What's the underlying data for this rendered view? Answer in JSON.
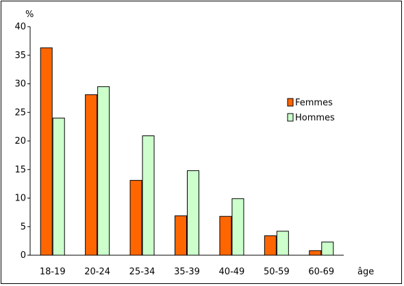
{
  "chart_data": {
    "type": "bar",
    "title": "",
    "ylabel": "%",
    "xlabel": "âge",
    "ylim": [
      0,
      40
    ],
    "yticks": [
      0,
      5,
      10,
      15,
      20,
      25,
      30,
      35,
      40
    ],
    "categories": [
      "18-19",
      "20-24",
      "25-34",
      "35-39",
      "40-49",
      "50-59",
      "60-69"
    ],
    "series": [
      {
        "name": "Femmes",
        "color": "#ff6600",
        "values": [
          36.3,
          28.1,
          13.1,
          6.9,
          6.8,
          3.4,
          0.8
        ]
      },
      {
        "name": "Hommes",
        "color": "#ccffcc",
        "values": [
          24.0,
          29.5,
          20.9,
          14.8,
          9.9,
          4.2,
          2.3
        ]
      }
    ],
    "legend_position": "right",
    "grid": false
  }
}
